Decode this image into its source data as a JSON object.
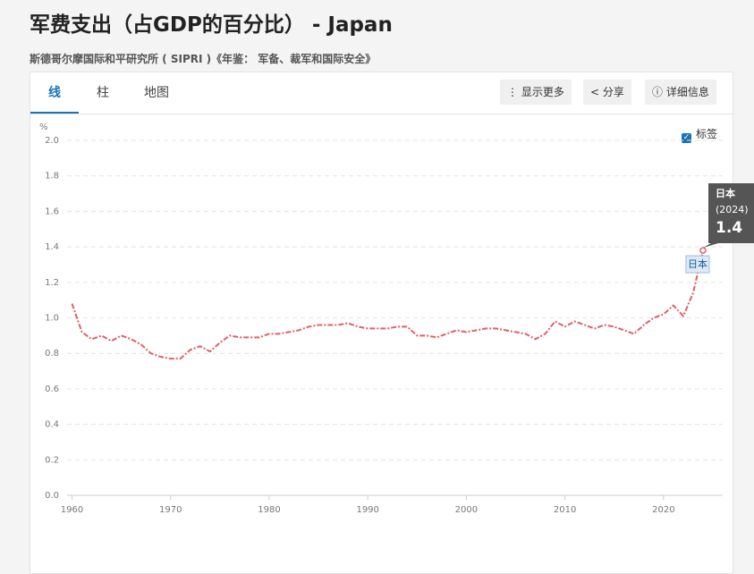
{
  "header": {
    "title": "军费支出（占GDP的百分比） - Japan",
    "source": "斯德哥尔摩国际和平研究所 ( SIPRI )《年鉴： 军备、裁军和国际安全》"
  },
  "tabs": [
    "线",
    "柱",
    "地图"
  ],
  "buttons": [
    "显示更多",
    "分享",
    "详细信息"
  ],
  "checkbox": {
    "label": "标签",
    "checked": true
  },
  "chart_data": {
    "type": "line",
    "y_unit": "%",
    "x": [
      1960,
      1961,
      1962,
      1963,
      1964,
      1965,
      1966,
      1967,
      1968,
      1969,
      1970,
      1971,
      1972,
      1973,
      1974,
      1975,
      1976,
      1977,
      1978,
      1979,
      1980,
      1981,
      1982,
      1983,
      1984,
      1985,
      1986,
      1987,
      1988,
      1989,
      1990,
      1991,
      1992,
      1993,
      1994,
      1995,
      1996,
      1997,
      1998,
      1999,
      2000,
      2001,
      2002,
      2003,
      2004,
      2005,
      2006,
      2007,
      2008,
      2009,
      2010,
      2011,
      2012,
      2013,
      2014,
      2015,
      2016,
      2017,
      2018,
      2019,
      2020,
      2021,
      2022,
      2023,
      2024
    ],
    "series": [
      {
        "name": "日本",
        "color": "#e0606a",
        "values": [
          1.08,
          0.92,
          0.88,
          0.9,
          0.87,
          0.9,
          0.88,
          0.85,
          0.8,
          0.78,
          0.77,
          0.77,
          0.82,
          0.84,
          0.81,
          0.86,
          0.9,
          0.89,
          0.89,
          0.89,
          0.91,
          0.91,
          0.92,
          0.93,
          0.95,
          0.96,
          0.96,
          0.96,
          0.97,
          0.95,
          0.94,
          0.94,
          0.94,
          0.95,
          0.95,
          0.9,
          0.9,
          0.89,
          0.91,
          0.93,
          0.92,
          0.93,
          0.94,
          0.94,
          0.93,
          0.92,
          0.91,
          0.88,
          0.91,
          0.98,
          0.95,
          0.98,
          0.96,
          0.94,
          0.96,
          0.95,
          0.93,
          0.91,
          0.96,
          1.0,
          1.02,
          1.07,
          1.01,
          1.14,
          1.38
        ]
      }
    ],
    "tooltip": {
      "name": "日本",
      "year": "(2024)",
      "value": 1.4
    },
    "xlim": [
      1959.5,
      2026
    ],
    "xticks": [
      1960,
      1970,
      1980,
      1990,
      2000,
      2010,
      2020
    ],
    "ylim": [
      0,
      2
    ],
    "yticks": [
      {
        "value": 0,
        "label": "0.0"
      },
      0.2,
      0.4,
      0.6,
      0.8,
      {
        "value": 1,
        "label": "1.0"
      },
      1.2,
      1.4,
      1.6,
      1.8,
      {
        "value": 2,
        "label": "2.0"
      }
    ],
    "grid": true
  }
}
